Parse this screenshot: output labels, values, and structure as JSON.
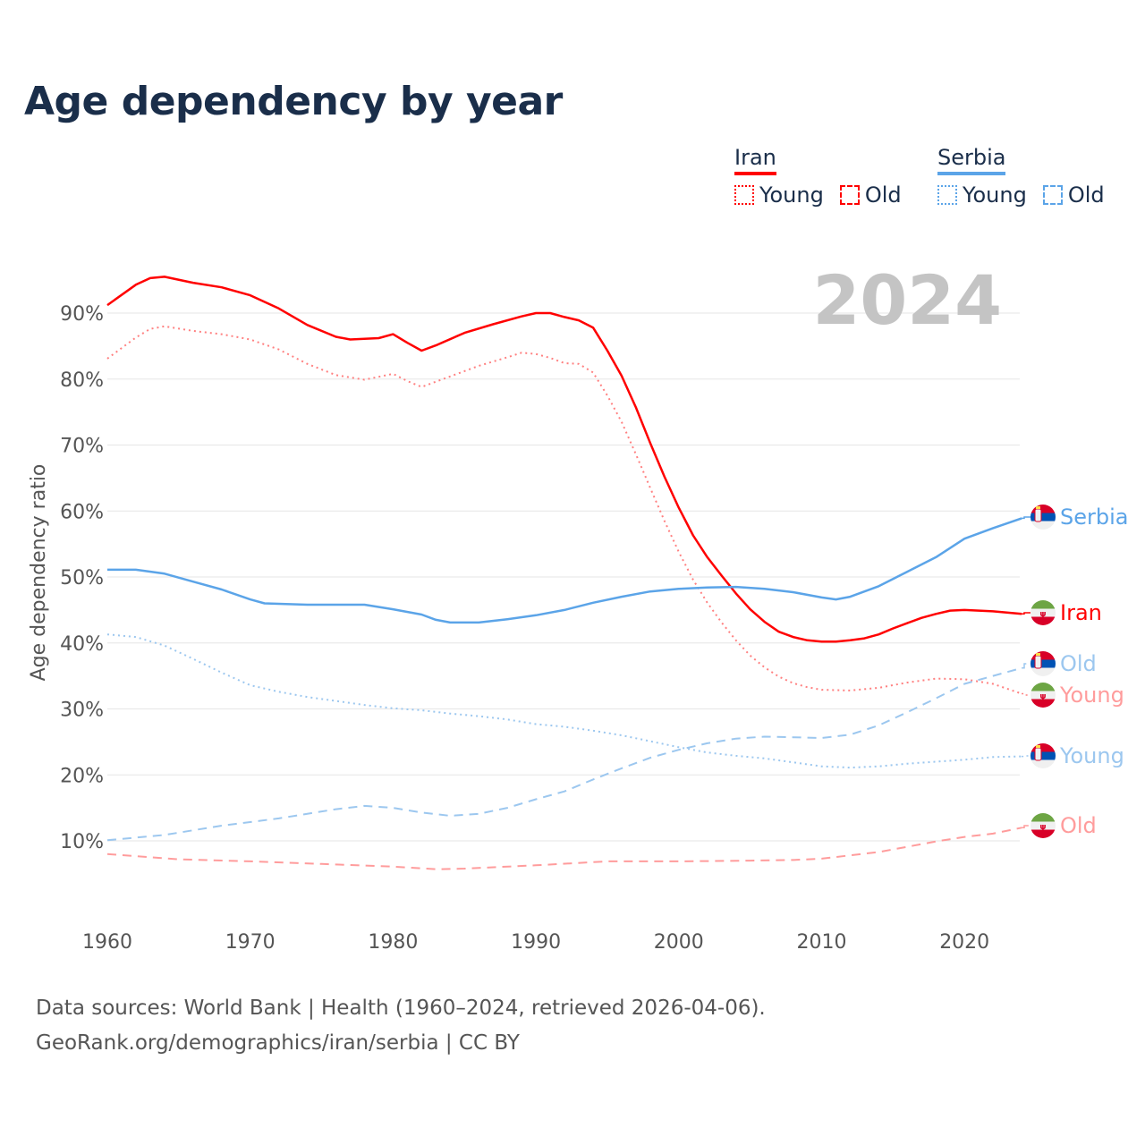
{
  "title": "Age dependency by year",
  "year_badge": "2024",
  "legend": {
    "groups": [
      {
        "name": "Iran",
        "color": "#ff0000",
        "items": [
          "Young",
          "Old"
        ]
      },
      {
        "name": "Serbia",
        "color": "#5ba4e8",
        "items": [
          "Young",
          "Old"
        ]
      }
    ]
  },
  "source": {
    "line1": "Data sources: World Bank | Health (1960–2024, retrieved 2026-04-06).",
    "line2": "GeoRank.org/demographics/iran/serbia | CC BY"
  },
  "chart_data": {
    "type": "line",
    "title": "Age dependency by year",
    "xlabel": "",
    "ylabel": "Age dependency ratio",
    "xlim": [
      1960,
      2024
    ],
    "ylim": [
      0,
      100
    ],
    "x_ticks": [
      "1960",
      "1970",
      "1980",
      "1990",
      "2000",
      "2010",
      "2020"
    ],
    "y_ticks": [
      "10%",
      "20%",
      "30%",
      "40%",
      "50%",
      "60%",
      "70%",
      "80%",
      "90%"
    ],
    "grid": true,
    "series": [
      {
        "name": "Iran",
        "label": "Iran",
        "country": "Iran",
        "color": "#ff0000",
        "style": "solid",
        "width": 2.5,
        "points": [
          [
            1960,
            91.2
          ],
          [
            1962,
            94.3
          ],
          [
            1963,
            95.3
          ],
          [
            1964,
            95.5
          ],
          [
            1966,
            94.6
          ],
          [
            1968,
            93.9
          ],
          [
            1970,
            92.7
          ],
          [
            1972,
            90.7
          ],
          [
            1974,
            88.2
          ],
          [
            1976,
            86.4
          ],
          [
            1977,
            86
          ],
          [
            1979,
            86.2
          ],
          [
            1980,
            86.8
          ],
          [
            1981,
            85.5
          ],
          [
            1982,
            84.3
          ],
          [
            1983,
            85.1
          ],
          [
            1985,
            87
          ],
          [
            1987,
            88.3
          ],
          [
            1989,
            89.5
          ],
          [
            1990,
            90
          ],
          [
            1991,
            90
          ],
          [
            1992,
            89.4
          ],
          [
            1993,
            88.9
          ],
          [
            1994,
            87.8
          ],
          [
            1995,
            84.3
          ],
          [
            1996,
            80.5
          ],
          [
            1997,
            75.7
          ],
          [
            1998,
            70.3
          ],
          [
            1999,
            65.2
          ],
          [
            2000,
            60.5
          ],
          [
            2001,
            56.3
          ],
          [
            2002,
            53
          ],
          [
            2003,
            50.2
          ],
          [
            2004,
            47.5
          ],
          [
            2005,
            45.1
          ],
          [
            2006,
            43.2
          ],
          [
            2007,
            41.7
          ],
          [
            2008,
            40.9
          ],
          [
            2009,
            40.4
          ],
          [
            2010,
            40.2
          ],
          [
            2011,
            40.2
          ],
          [
            2012,
            40.4
          ],
          [
            2013,
            40.7
          ],
          [
            2014,
            41.3
          ],
          [
            2015,
            42.2
          ],
          [
            2016,
            43
          ],
          [
            2017,
            43.8
          ],
          [
            2018,
            44.4
          ],
          [
            2019,
            44.9
          ],
          [
            2020,
            45
          ],
          [
            2022,
            44.8
          ],
          [
            2024,
            44.4
          ]
        ]
      },
      {
        "name": "Iran Young",
        "label": "Young",
        "country": "Iran",
        "color": "#ff8080",
        "style": "dotted",
        "width": 2,
        "points": [
          [
            1960,
            83.1
          ],
          [
            1962,
            86.3
          ],
          [
            1963,
            87.6
          ],
          [
            1964,
            88
          ],
          [
            1966,
            87.3
          ],
          [
            1968,
            86.8
          ],
          [
            1970,
            86
          ],
          [
            1972,
            84.5
          ],
          [
            1974,
            82.3
          ],
          [
            1976,
            80.6
          ],
          [
            1978,
            79.9
          ],
          [
            1980,
            80.8
          ],
          [
            1981,
            79.7
          ],
          [
            1982,
            78.8
          ],
          [
            1984,
            80.4
          ],
          [
            1986,
            82
          ],
          [
            1988,
            83.3
          ],
          [
            1989,
            84
          ],
          [
            1990,
            83.8
          ],
          [
            1991,
            83.2
          ],
          [
            1992,
            82.4
          ],
          [
            1993,
            82.3
          ],
          [
            1994,
            81
          ],
          [
            1995,
            77.5
          ],
          [
            1996,
            73.5
          ],
          [
            1997,
            68.6
          ],
          [
            1998,
            63.5
          ],
          [
            1999,
            58.5
          ],
          [
            2000,
            53.8
          ],
          [
            2001,
            49.6
          ],
          [
            2002,
            46.1
          ],
          [
            2003,
            43.1
          ],
          [
            2004,
            40.4
          ],
          [
            2005,
            38.1
          ],
          [
            2006,
            36.3
          ],
          [
            2007,
            34.9
          ],
          [
            2008,
            33.9
          ],
          [
            2009,
            33.3
          ],
          [
            2010,
            32.9
          ],
          [
            2012,
            32.8
          ],
          [
            2014,
            33.2
          ],
          [
            2016,
            34
          ],
          [
            2018,
            34.6
          ],
          [
            2020,
            34.5
          ],
          [
            2022,
            33.8
          ],
          [
            2024,
            32.3
          ]
        ]
      },
      {
        "name": "Iran Old",
        "label": "Old",
        "country": "Iran",
        "color": "#ff9c9c",
        "style": "dashed",
        "width": 2,
        "points": [
          [
            1960,
            8
          ],
          [
            1965,
            7.2
          ],
          [
            1970,
            6.9
          ],
          [
            1975,
            6.5
          ],
          [
            1980,
            6.1
          ],
          [
            1983,
            5.7
          ],
          [
            1985,
            5.8
          ],
          [
            1990,
            6.3
          ],
          [
            1995,
            6.9
          ],
          [
            2000,
            6.9
          ],
          [
            2005,
            7
          ],
          [
            2008,
            7.1
          ],
          [
            2010,
            7.3
          ],
          [
            2012,
            7.8
          ],
          [
            2014,
            8.3
          ],
          [
            2016,
            9.1
          ],
          [
            2018,
            9.9
          ],
          [
            2020,
            10.6
          ],
          [
            2022,
            11.1
          ],
          [
            2024,
            12
          ]
        ]
      },
      {
        "name": "Serbia",
        "label": "Serbia",
        "country": "Serbia",
        "color": "#5ba4e8",
        "style": "solid",
        "width": 2.5,
        "points": [
          [
            1960,
            51.1
          ],
          [
            1962,
            51.1
          ],
          [
            1964,
            50.5
          ],
          [
            1966,
            49.3
          ],
          [
            1968,
            48.1
          ],
          [
            1970,
            46.6
          ],
          [
            1971,
            46
          ],
          [
            1974,
            45.8
          ],
          [
            1978,
            45.8
          ],
          [
            1980,
            45.1
          ],
          [
            1982,
            44.3
          ],
          [
            1983,
            43.5
          ],
          [
            1984,
            43.1
          ],
          [
            1986,
            43.1
          ],
          [
            1988,
            43.6
          ],
          [
            1990,
            44.2
          ],
          [
            1992,
            45
          ],
          [
            1994,
            46.1
          ],
          [
            1996,
            47
          ],
          [
            1998,
            47.8
          ],
          [
            2000,
            48.2
          ],
          [
            2002,
            48.4
          ],
          [
            2004,
            48.5
          ],
          [
            2006,
            48.2
          ],
          [
            2008,
            47.7
          ],
          [
            2010,
            46.9
          ],
          [
            2011,
            46.6
          ],
          [
            2012,
            47
          ],
          [
            2014,
            48.6
          ],
          [
            2016,
            50.8
          ],
          [
            2018,
            53
          ],
          [
            2020,
            55.8
          ],
          [
            2022,
            57.4
          ],
          [
            2024,
            58.9
          ]
        ]
      },
      {
        "name": "Serbia Young",
        "label": "Young",
        "country": "Serbia",
        "color": "#9cc7ef",
        "style": "dotted",
        "width": 2,
        "points": [
          [
            1960,
            41.3
          ],
          [
            1962,
            40.9
          ],
          [
            1964,
            39.6
          ],
          [
            1966,
            37.6
          ],
          [
            1968,
            35.5
          ],
          [
            1970,
            33.6
          ],
          [
            1972,
            32.6
          ],
          [
            1974,
            31.8
          ],
          [
            1976,
            31.2
          ],
          [
            1978,
            30.6
          ],
          [
            1980,
            30.1
          ],
          [
            1982,
            29.8
          ],
          [
            1984,
            29.3
          ],
          [
            1986,
            28.9
          ],
          [
            1988,
            28.4
          ],
          [
            1990,
            27.7
          ],
          [
            1992,
            27.3
          ],
          [
            1994,
            26.7
          ],
          [
            1996,
            26
          ],
          [
            1998,
            25.1
          ],
          [
            2000,
            24.2
          ],
          [
            2002,
            23.4
          ],
          [
            2004,
            22.9
          ],
          [
            2006,
            22.5
          ],
          [
            2008,
            21.9
          ],
          [
            2010,
            21.3
          ],
          [
            2012,
            21.1
          ],
          [
            2014,
            21.3
          ],
          [
            2016,
            21.7
          ],
          [
            2018,
            22
          ],
          [
            2020,
            22.3
          ],
          [
            2022,
            22.7
          ],
          [
            2024,
            22.8
          ]
        ]
      },
      {
        "name": "Serbia Old",
        "label": "Old",
        "country": "Serbia",
        "color": "#9cc7ef",
        "style": "dashed",
        "width": 2,
        "points": [
          [
            1960,
            10.1
          ],
          [
            1964,
            10.9
          ],
          [
            1968,
            12.3
          ],
          [
            1972,
            13.4
          ],
          [
            1976,
            14.8
          ],
          [
            1978,
            15.3
          ],
          [
            1980,
            15
          ],
          [
            1982,
            14.3
          ],
          [
            1984,
            13.8
          ],
          [
            1986,
            14.1
          ],
          [
            1988,
            15
          ],
          [
            1990,
            16.3
          ],
          [
            1992,
            17.5
          ],
          [
            1994,
            19.3
          ],
          [
            1996,
            21
          ],
          [
            1998,
            22.6
          ],
          [
            2000,
            23.8
          ],
          [
            2002,
            24.8
          ],
          [
            2004,
            25.5
          ],
          [
            2006,
            25.8
          ],
          [
            2008,
            25.7
          ],
          [
            2010,
            25.6
          ],
          [
            2012,
            26.1
          ],
          [
            2014,
            27.5
          ],
          [
            2016,
            29.5
          ],
          [
            2018,
            31.6
          ],
          [
            2020,
            33.8
          ],
          [
            2022,
            35
          ],
          [
            2024,
            36.2
          ]
        ]
      }
    ]
  }
}
